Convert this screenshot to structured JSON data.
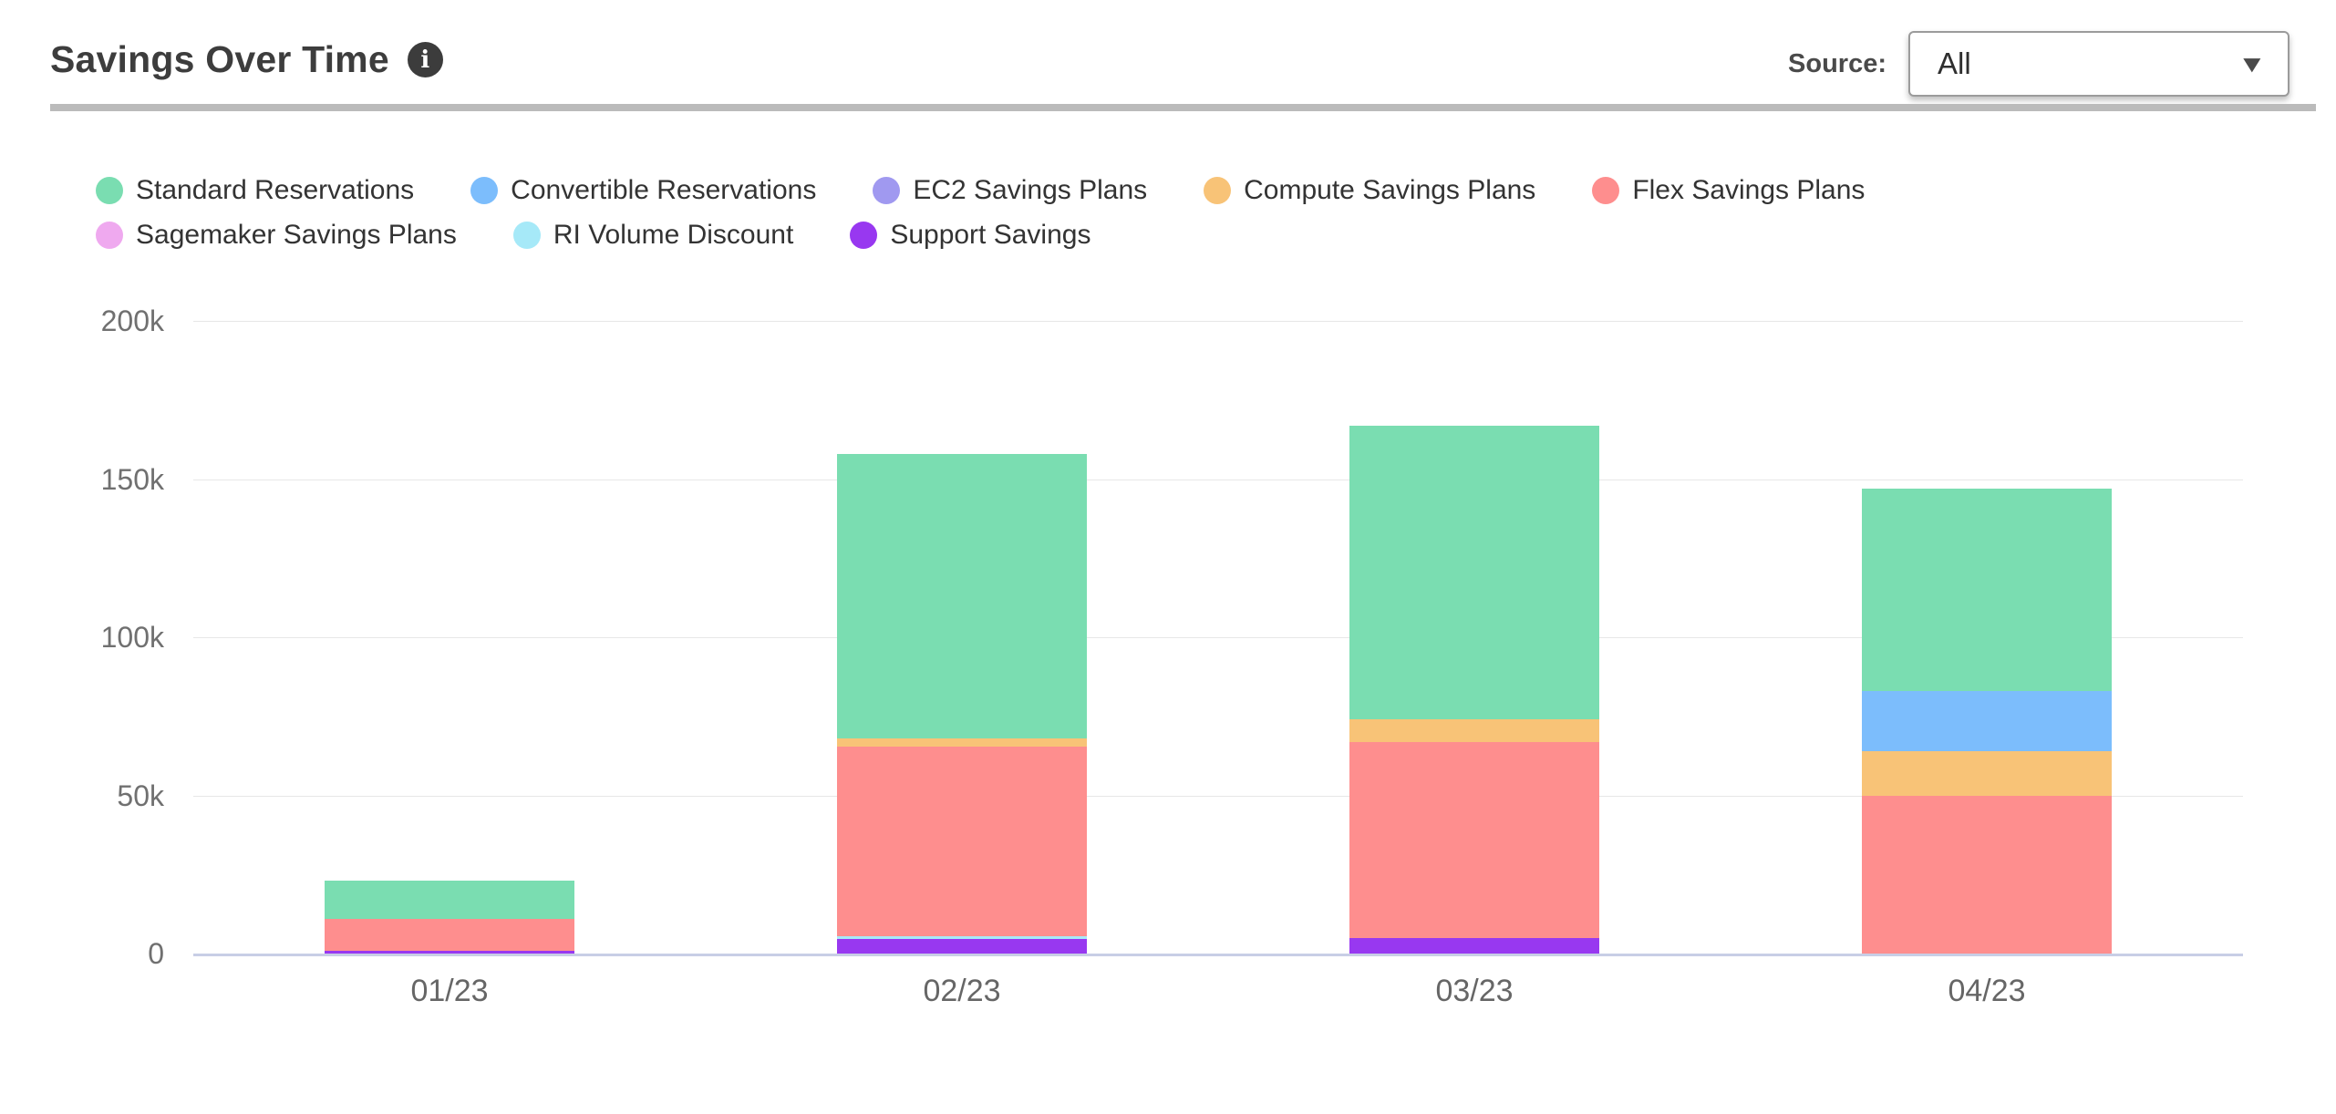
{
  "header": {
    "title": "Savings Over Time",
    "source_label": "Source:",
    "source_value": "All"
  },
  "icons": {
    "info": "i",
    "dropdown_caret": "▼"
  },
  "colors": {
    "divider": "#bbbbbb",
    "axis_line": "#c8cee6",
    "gridline": "#e7e7e7",
    "info_icon_bg": "#3c3c3c"
  },
  "chart_data": {
    "type": "bar",
    "stacked": true,
    "title": "Savings Over Time",
    "xlabel": "",
    "ylabel": "",
    "ylim": [
      0,
      200000
    ],
    "y_ticks_bottom_to_top": [
      "0",
      "50k",
      "100k",
      "150k",
      "200k"
    ],
    "grid": true,
    "legend_position": "top",
    "categories": [
      "01/23",
      "02/23",
      "03/23",
      "04/23"
    ],
    "series": [
      {
        "name": "Standard Reservations",
        "color": "#7addb1",
        "values": [
          12000,
          90000,
          93000,
          64000
        ]
      },
      {
        "name": "Convertible Reservations",
        "color": "#7cbdfc",
        "values": [
          0,
          0,
          0,
          19000
        ]
      },
      {
        "name": "EC2 Savings Plans",
        "color": "#a099f0",
        "values": [
          0,
          0,
          0,
          0
        ]
      },
      {
        "name": "Compute Savings Plans",
        "color": "#f8c377",
        "values": [
          0,
          2500,
          7000,
          14000
        ]
      },
      {
        "name": "Flex Savings Plans",
        "color": "#fe8e8e",
        "values": [
          10000,
          60000,
          62000,
          50000
        ]
      },
      {
        "name": "Sagemaker Savings Plans",
        "color": "#efa9ef",
        "values": [
          0,
          0,
          0,
          0
        ]
      },
      {
        "name": "RI Volume Discount",
        "color": "#a6e9f8",
        "values": [
          0,
          1000,
          0,
          0
        ]
      },
      {
        "name": "Support Savings",
        "color": "#9838f0",
        "values": [
          1000,
          4500,
          5000,
          0
        ]
      }
    ],
    "stack_order_bottom_to_top": [
      "Support Savings",
      "RI Volume Discount",
      "Sagemaker Savings Plans",
      "Flex Savings Plans",
      "Compute Savings Plans",
      "EC2 Savings Plans",
      "Convertible Reservations",
      "Standard Reservations"
    ],
    "totals": [
      23000,
      158000,
      167000,
      147000
    ]
  }
}
